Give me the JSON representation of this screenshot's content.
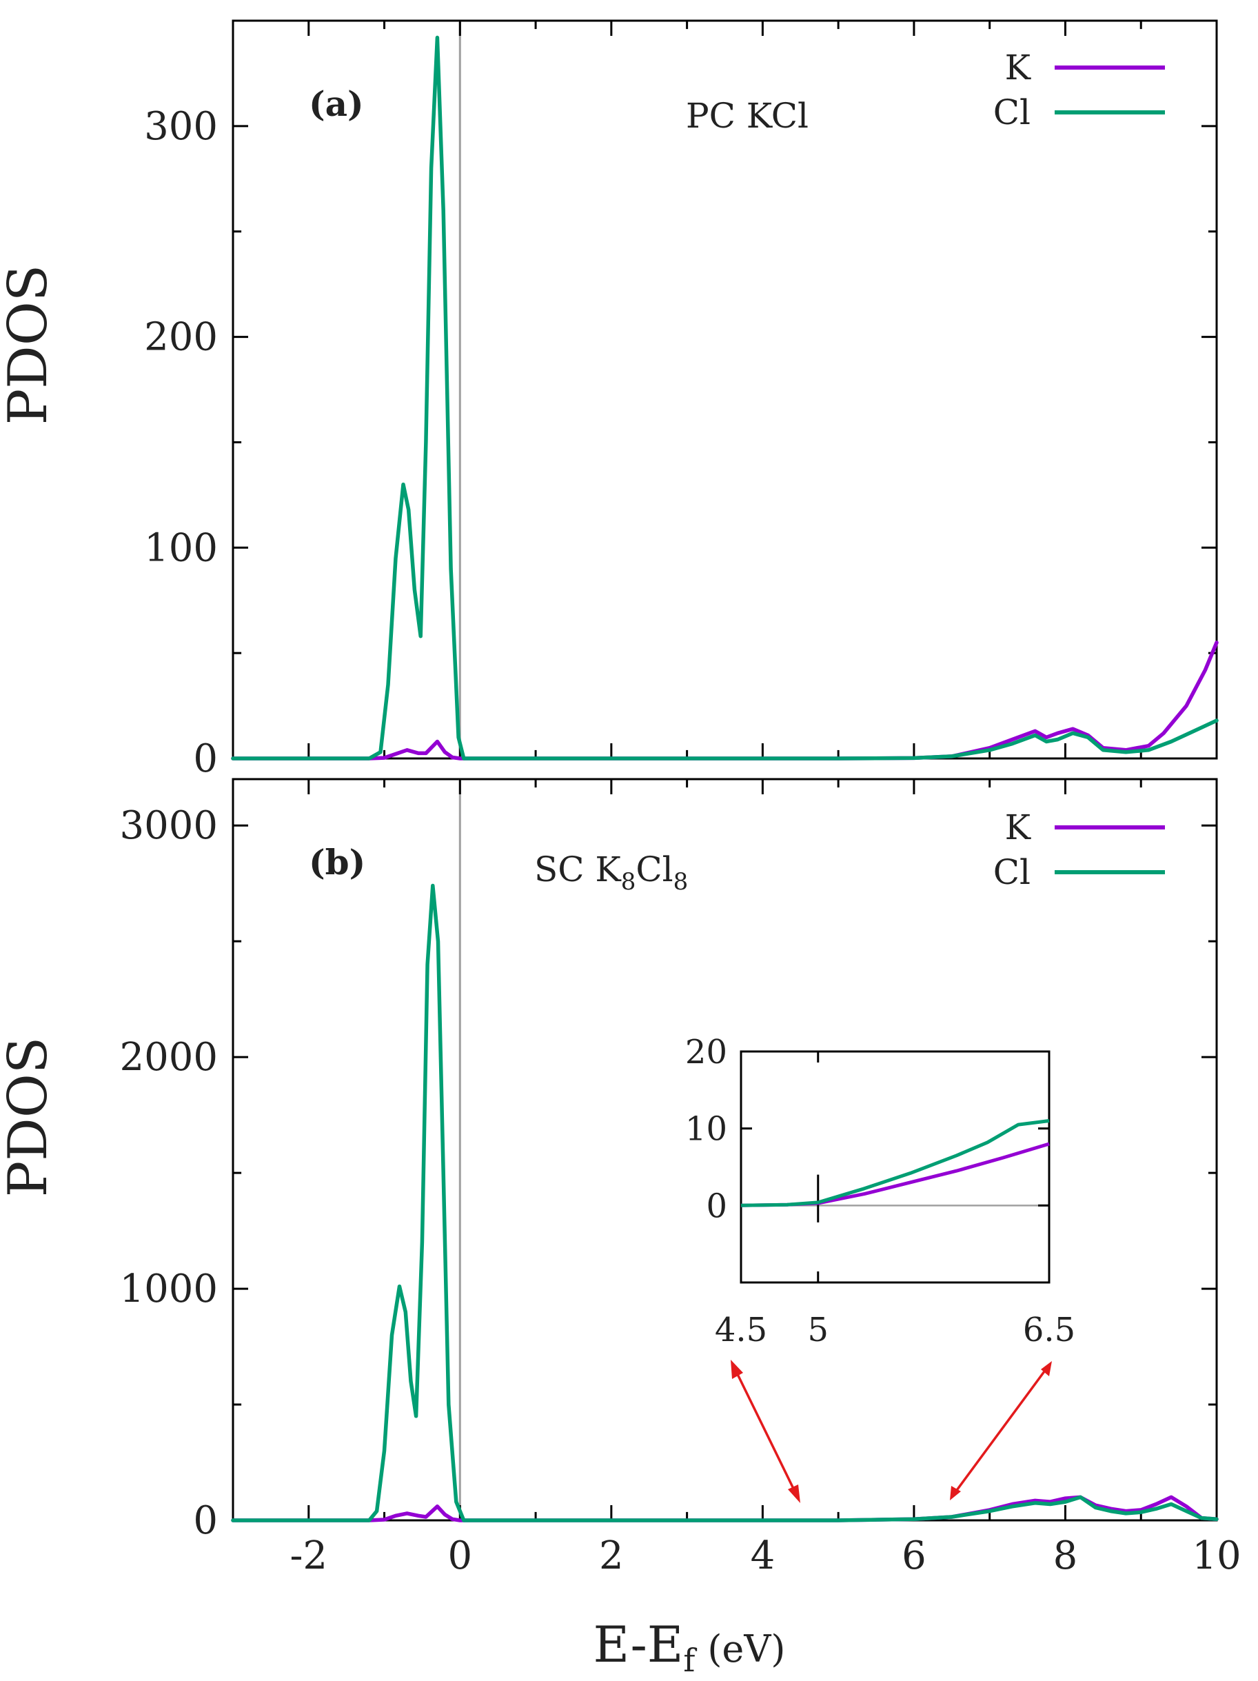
{
  "colors": {
    "K": "#9400d3",
    "Cl": "#009e73",
    "arrow": "#e31a1c",
    "zero_line": "#a0a0a0",
    "axis": "#000000"
  },
  "chart_data": [
    {
      "type": "line",
      "panel_label": "(a)",
      "system_label": "PC KCl",
      "xlabel_main": "E-E",
      "xlabel_sub": "f",
      "xlabel_unit": "(eV)",
      "ylabel": "PDOS",
      "xlim": [
        -3,
        10
      ],
      "ylim": [
        0,
        350
      ],
      "x_ticks": [
        -2,
        0,
        2,
        4,
        6,
        8,
        10
      ],
      "x_minor_ticks": [
        -3,
        -2,
        -1,
        0,
        1,
        2,
        3,
        4,
        5,
        6,
        7,
        8,
        9,
        10
      ],
      "y_tick_labels": [
        0,
        100,
        200,
        300
      ],
      "y_minor_ticks": [
        50,
        150,
        250,
        350
      ],
      "legend": [
        "K",
        "Cl"
      ],
      "series": [
        {
          "name": "K",
          "x": [
            -3,
            -1.2,
            -1.0,
            -0.9,
            -0.7,
            -0.55,
            -0.45,
            -0.3,
            -0.2,
            -0.1,
            0.0,
            0.2,
            5.0,
            6.0,
            6.5,
            7.0,
            7.3,
            7.6,
            7.75,
            7.9,
            8.1,
            8.3,
            8.5,
            8.8,
            9.1,
            9.3,
            9.6,
            9.85,
            10.0
          ],
          "y": [
            0,
            0,
            0.3,
            1.5,
            4,
            2.5,
            2.5,
            8,
            3,
            0.5,
            0,
            0,
            0,
            0.2,
            1,
            5,
            9,
            13,
            10,
            12,
            14,
            11,
            5,
            4,
            6,
            12,
            25,
            42,
            55
          ]
        },
        {
          "name": "Cl",
          "x": [
            -3,
            -1.2,
            -1.05,
            -0.95,
            -0.85,
            -0.75,
            -0.68,
            -0.6,
            -0.52,
            -0.45,
            -0.38,
            -0.3,
            -0.22,
            -0.12,
            -0.02,
            0.05,
            0.2,
            5.0,
            6.0,
            6.5,
            7.0,
            7.3,
            7.6,
            7.75,
            7.9,
            8.1,
            8.3,
            8.5,
            8.8,
            9.1,
            9.4,
            9.7,
            10.0
          ],
          "y": [
            0,
            0,
            3,
            35,
            95,
            130,
            118,
            80,
            58,
            150,
            280,
            342,
            260,
            90,
            10,
            0,
            0,
            0,
            0.2,
            1,
            4,
            7,
            11,
            8,
            9,
            12,
            10,
            4,
            3,
            4,
            8,
            13,
            18
          ]
        }
      ]
    },
    {
      "type": "line",
      "panel_label": "(b)",
      "system_label_main": "SC K",
      "system_label_sub1": "8",
      "system_label_mid": "Cl",
      "system_label_sub2": "8",
      "ylabel": "PDOS",
      "xlim": [
        -3,
        10
      ],
      "ylim": [
        0,
        3200
      ],
      "x_ticks": [
        -2,
        0,
        2,
        4,
        6,
        8,
        10
      ],
      "x_minor_ticks": [
        -3,
        -2,
        -1,
        0,
        1,
        2,
        3,
        4,
        5,
        6,
        7,
        8,
        9,
        10
      ],
      "y_tick_labels": [
        0,
        1000,
        2000,
        3000
      ],
      "y_minor_ticks": [
        500,
        1500,
        2500
      ],
      "legend": [
        "K",
        "Cl"
      ],
      "series": [
        {
          "name": "K",
          "x": [
            -3,
            -1.2,
            -1.0,
            -0.85,
            -0.7,
            -0.55,
            -0.45,
            -0.3,
            -0.2,
            -0.1,
            0.0,
            0.2,
            5.0,
            6.0,
            6.5,
            7.0,
            7.3,
            7.6,
            7.8,
            8.0,
            8.2,
            8.4,
            8.6,
            8.8,
            9.0,
            9.2,
            9.4,
            9.6,
            9.8,
            10.0
          ],
          "y": [
            0,
            0,
            3,
            20,
            30,
            20,
            15,
            60,
            25,
            5,
            0,
            0,
            0,
            5,
            15,
            45,
            70,
            85,
            80,
            95,
            100,
            65,
            50,
            40,
            45,
            70,
            100,
            60,
            10,
            5
          ]
        },
        {
          "name": "Cl",
          "x": [
            -3,
            -1.2,
            -1.1,
            -1.0,
            -0.9,
            -0.8,
            -0.72,
            -0.65,
            -0.58,
            -0.5,
            -0.43,
            -0.36,
            -0.29,
            -0.22,
            -0.15,
            -0.05,
            0.05,
            0.2,
            5.0,
            6.0,
            6.5,
            7.0,
            7.3,
            7.6,
            7.8,
            8.0,
            8.2,
            8.4,
            8.6,
            8.8,
            9.0,
            9.2,
            9.4,
            9.6,
            9.8,
            10.0
          ],
          "y": [
            0,
            0,
            40,
            300,
            800,
            1010,
            900,
            600,
            450,
            1200,
            2400,
            2740,
            2500,
            1500,
            500,
            80,
            0,
            0,
            0,
            5,
            15,
            40,
            60,
            75,
            70,
            80,
            100,
            55,
            40,
            30,
            35,
            50,
            70,
            40,
            10,
            5
          ]
        }
      ]
    },
    {
      "type": "line",
      "role": "inset of panel (b)",
      "xlim": [
        4.5,
        6.5
      ],
      "ylim": [
        -10,
        20
      ],
      "x_tick_labels": [
        "4.5",
        "5",
        "6.5"
      ],
      "x_tick_values": [
        4.5,
        5,
        6.5
      ],
      "y_tick_labels": [
        0,
        10,
        20
      ],
      "series": [
        {
          "name": "K",
          "x": [
            4.5,
            4.8,
            5.0,
            5.3,
            5.6,
            5.9,
            6.2,
            6.5
          ],
          "y": [
            0,
            0.1,
            0.3,
            1.5,
            3,
            4.5,
            6.2,
            8
          ]
        },
        {
          "name": "Cl",
          "x": [
            4.5,
            4.8,
            5.0,
            5.3,
            5.6,
            5.9,
            6.1,
            6.3,
            6.5
          ],
          "y": [
            0,
            0.1,
            0.4,
            2.2,
            4.2,
            6.5,
            8.2,
            10.5,
            11
          ]
        }
      ]
    }
  ]
}
